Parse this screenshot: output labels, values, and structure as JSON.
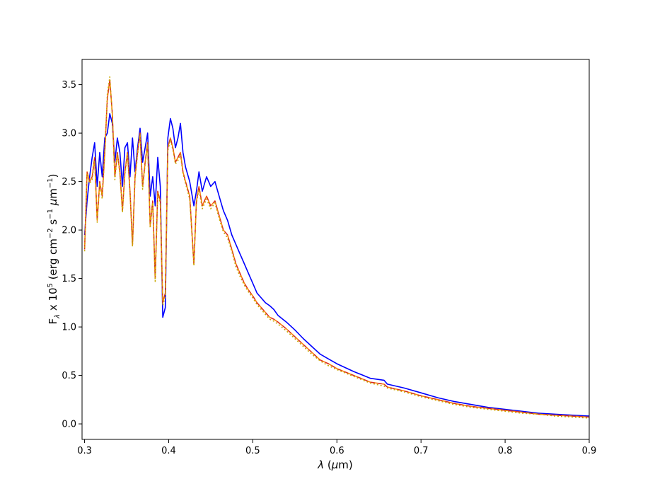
{
  "chart_data": {
    "type": "line",
    "title": "",
    "xlabel": "λ (μm)",
    "ylabel": "F_λ x 10^5 (erg cm^-2 s^-1 μm^-1)",
    "ylabel_parts": {
      "f": "F",
      "f_sub": "λ",
      "times": " x 10",
      "pow": "5",
      "units_a": " (erg cm",
      "exp1": "−2",
      "units_b": " s",
      "exp2": "−1",
      "units_c": " ",
      "mu": "μ",
      "units_d": "m",
      "exp3": "−1",
      "close": ")"
    },
    "xlabel_parts": {
      "lam": "λ",
      "rest": " (",
      "mu": "μ",
      "unit": "m)"
    },
    "xlim": [
      0.297,
      0.9
    ],
    "ylim": [
      -0.16,
      3.76
    ],
    "xticks": [
      {
        "v": 0.3,
        "label": "0.3"
      },
      {
        "v": 0.4,
        "label": "0.4"
      },
      {
        "v": 0.5,
        "label": "0.5"
      },
      {
        "v": 0.6,
        "label": "0.6"
      },
      {
        "v": 0.7,
        "label": "0.7"
      },
      {
        "v": 0.8,
        "label": "0.8"
      },
      {
        "v": 0.9,
        "label": "0.9"
      }
    ],
    "yticks": [
      {
        "v": 0.0,
        "label": "0.0"
      },
      {
        "v": 0.5,
        "label": "0.5"
      },
      {
        "v": 1.0,
        "label": "1.0"
      },
      {
        "v": 1.5,
        "label": "1.5"
      },
      {
        "v": 2.0,
        "label": "2.0"
      },
      {
        "v": 2.5,
        "label": "2.5"
      },
      {
        "v": 3.0,
        "label": "3.0"
      },
      {
        "v": 3.5,
        "label": "3.5"
      }
    ],
    "grid": false,
    "legend": "none",
    "series": [
      {
        "color": "#0000ff",
        "style": "solid",
        "x": [
          0.3,
          0.303,
          0.306,
          0.309,
          0.312,
          0.315,
          0.318,
          0.321,
          0.324,
          0.327,
          0.33,
          0.333,
          0.336,
          0.339,
          0.342,
          0.345,
          0.348,
          0.351,
          0.354,
          0.357,
          0.36,
          0.363,
          0.366,
          0.369,
          0.372,
          0.375,
          0.378,
          0.381,
          0.384,
          0.387,
          0.39,
          0.393,
          0.396,
          0.399,
          0.402,
          0.405,
          0.408,
          0.411,
          0.414,
          0.417,
          0.42,
          0.425,
          0.43,
          0.433,
          0.436,
          0.44,
          0.445,
          0.45,
          0.455,
          0.46,
          0.465,
          0.47,
          0.475,
          0.48,
          0.485,
          0.49,
          0.495,
          0.5,
          0.505,
          0.51,
          0.515,
          0.52,
          0.525,
          0.53,
          0.54,
          0.55,
          0.56,
          0.57,
          0.58,
          0.59,
          0.6,
          0.62,
          0.64,
          0.656,
          0.66,
          0.68,
          0.7,
          0.72,
          0.74,
          0.76,
          0.78,
          0.8,
          0.82,
          0.84,
          0.86,
          0.88,
          0.9
        ],
        "y": [
          1.95,
          2.3,
          2.55,
          2.75,
          2.9,
          2.45,
          2.8,
          2.55,
          2.95,
          3.0,
          3.2,
          3.1,
          2.7,
          2.95,
          2.8,
          2.45,
          2.85,
          2.9,
          2.55,
          2.95,
          2.6,
          2.85,
          3.05,
          2.7,
          2.85,
          3.0,
          2.35,
          2.55,
          2.25,
          2.75,
          2.45,
          1.1,
          1.2,
          2.95,
          3.15,
          3.05,
          2.85,
          2.95,
          3.1,
          2.8,
          2.65,
          2.5,
          2.25,
          2.4,
          2.6,
          2.4,
          2.55,
          2.45,
          2.5,
          2.35,
          2.2,
          2.1,
          1.95,
          1.85,
          1.75,
          1.65,
          1.55,
          1.45,
          1.35,
          1.3,
          1.25,
          1.22,
          1.18,
          1.12,
          1.05,
          0.97,
          0.88,
          0.8,
          0.72,
          0.67,
          0.62,
          0.54,
          0.47,
          0.45,
          0.41,
          0.37,
          0.32,
          0.27,
          0.23,
          0.2,
          0.17,
          0.15,
          0.13,
          0.11,
          0.1,
          0.09,
          0.08
        ]
      },
      {
        "color": "#ff7f0e",
        "style": "solid",
        "x": [
          0.3,
          0.303,
          0.306,
          0.309,
          0.312,
          0.315,
          0.318,
          0.321,
          0.324,
          0.327,
          0.33,
          0.333,
          0.336,
          0.339,
          0.342,
          0.345,
          0.348,
          0.351,
          0.354,
          0.357,
          0.36,
          0.363,
          0.366,
          0.369,
          0.372,
          0.375,
          0.378,
          0.381,
          0.384,
          0.387,
          0.39,
          0.393,
          0.396,
          0.399,
          0.402,
          0.405,
          0.408,
          0.411,
          0.414,
          0.417,
          0.42,
          0.425,
          0.43,
          0.433,
          0.436,
          0.44,
          0.445,
          0.45,
          0.455,
          0.46,
          0.465,
          0.47,
          0.475,
          0.48,
          0.485,
          0.49,
          0.495,
          0.5,
          0.505,
          0.51,
          0.515,
          0.52,
          0.525,
          0.53,
          0.54,
          0.55,
          0.56,
          0.57,
          0.58,
          0.59,
          0.6,
          0.62,
          0.64,
          0.656,
          0.66,
          0.68,
          0.7,
          0.72,
          0.74,
          0.76,
          0.78,
          0.8,
          0.82,
          0.84,
          0.86,
          0.88,
          0.9
        ],
        "y": [
          1.8,
          2.6,
          2.5,
          2.55,
          2.75,
          2.1,
          2.5,
          2.35,
          2.8,
          3.35,
          3.55,
          3.2,
          2.55,
          2.8,
          2.6,
          2.2,
          2.6,
          2.8,
          2.4,
          1.85,
          2.55,
          2.8,
          3.0,
          2.45,
          2.7,
          2.9,
          2.05,
          2.3,
          1.5,
          2.4,
          2.3,
          1.25,
          1.35,
          2.85,
          2.95,
          2.85,
          2.7,
          2.75,
          2.8,
          2.6,
          2.5,
          2.35,
          1.65,
          2.3,
          2.45,
          2.25,
          2.35,
          2.25,
          2.3,
          2.15,
          2.0,
          1.95,
          1.8,
          1.65,
          1.55,
          1.45,
          1.38,
          1.32,
          1.25,
          1.2,
          1.15,
          1.1,
          1.08,
          1.05,
          0.98,
          0.9,
          0.82,
          0.74,
          0.66,
          0.62,
          0.57,
          0.5,
          0.43,
          0.41,
          0.38,
          0.34,
          0.29,
          0.25,
          0.21,
          0.18,
          0.16,
          0.14,
          0.12,
          0.1,
          0.09,
          0.08,
          0.07
        ]
      },
      {
        "color": "#d62728",
        "style": "dashed",
        "x": [
          0.3,
          0.303,
          0.306,
          0.309,
          0.312,
          0.315,
          0.318,
          0.321,
          0.324,
          0.327,
          0.33,
          0.333,
          0.336,
          0.339,
          0.342,
          0.345,
          0.348,
          0.351,
          0.354,
          0.357,
          0.36,
          0.363,
          0.366,
          0.369,
          0.372,
          0.375,
          0.378,
          0.381,
          0.384,
          0.387,
          0.39,
          0.393,
          0.396,
          0.399,
          0.402,
          0.405,
          0.408,
          0.411,
          0.414,
          0.417,
          0.42,
          0.425,
          0.43,
          0.433,
          0.436,
          0.44,
          0.445,
          0.45,
          0.455,
          0.46,
          0.465,
          0.47,
          0.475,
          0.48,
          0.485,
          0.49,
          0.495,
          0.5,
          0.505,
          0.51,
          0.515,
          0.52,
          0.525,
          0.53,
          0.54,
          0.55,
          0.56,
          0.57,
          0.58,
          0.59,
          0.6,
          0.62,
          0.64,
          0.656,
          0.66,
          0.68,
          0.7,
          0.72,
          0.74,
          0.76,
          0.78,
          0.8,
          0.82,
          0.84,
          0.86,
          0.88,
          0.9
        ],
        "y": [
          1.8,
          2.6,
          2.5,
          2.55,
          2.75,
          2.1,
          2.5,
          2.35,
          2.8,
          3.35,
          3.55,
          3.2,
          2.55,
          2.8,
          2.6,
          2.2,
          2.6,
          2.8,
          2.4,
          1.85,
          2.55,
          2.8,
          3.0,
          2.45,
          2.7,
          2.9,
          2.05,
          2.3,
          1.5,
          2.4,
          2.3,
          1.25,
          1.35,
          2.85,
          2.95,
          2.85,
          2.7,
          2.75,
          2.8,
          2.6,
          2.5,
          2.35,
          1.65,
          2.3,
          2.45,
          2.25,
          2.35,
          2.25,
          2.3,
          2.15,
          2.0,
          1.95,
          1.8,
          1.65,
          1.55,
          1.45,
          1.38,
          1.32,
          1.25,
          1.2,
          1.15,
          1.1,
          1.08,
          1.05,
          0.98,
          0.9,
          0.82,
          0.74,
          0.66,
          0.62,
          0.57,
          0.5,
          0.43,
          0.41,
          0.38,
          0.34,
          0.29,
          0.25,
          0.21,
          0.18,
          0.16,
          0.14,
          0.12,
          0.1,
          0.09,
          0.08,
          0.07
        ]
      },
      {
        "color": "#c8a800",
        "style": "dotted",
        "x": [
          0.3,
          0.303,
          0.306,
          0.309,
          0.312,
          0.315,
          0.318,
          0.321,
          0.324,
          0.327,
          0.33,
          0.333,
          0.336,
          0.339,
          0.342,
          0.345,
          0.348,
          0.351,
          0.354,
          0.357,
          0.36,
          0.363,
          0.366,
          0.369,
          0.372,
          0.375,
          0.378,
          0.381,
          0.384,
          0.387,
          0.39,
          0.393,
          0.396,
          0.399,
          0.402,
          0.405,
          0.408,
          0.411,
          0.414,
          0.417,
          0.42,
          0.425,
          0.43,
          0.433,
          0.436,
          0.44,
          0.445,
          0.45,
          0.455,
          0.46,
          0.465,
          0.47,
          0.475,
          0.48,
          0.485,
          0.49,
          0.495,
          0.5,
          0.505,
          0.51,
          0.515,
          0.52,
          0.525,
          0.53,
          0.54,
          0.55,
          0.56,
          0.57,
          0.58,
          0.59,
          0.6,
          0.62,
          0.64,
          0.656,
          0.66,
          0.68,
          0.7,
          0.72,
          0.74,
          0.76,
          0.78,
          0.8,
          0.82,
          0.84,
          0.86,
          0.88,
          0.9
        ],
        "y": [
          1.78,
          2.58,
          2.48,
          2.52,
          2.72,
          2.08,
          2.48,
          2.32,
          2.78,
          3.4,
          3.58,
          3.18,
          2.52,
          2.78,
          2.58,
          2.18,
          2.58,
          2.78,
          2.38,
          1.83,
          2.52,
          2.78,
          2.98,
          2.42,
          2.68,
          2.88,
          2.02,
          2.28,
          1.47,
          2.38,
          2.28,
          1.22,
          1.32,
          2.82,
          2.93,
          2.83,
          2.68,
          2.72,
          2.78,
          2.58,
          2.48,
          2.32,
          1.63,
          2.28,
          2.42,
          2.22,
          2.32,
          2.22,
          2.28,
          2.12,
          1.98,
          1.92,
          1.78,
          1.62,
          1.52,
          1.43,
          1.36,
          1.3,
          1.23,
          1.18,
          1.13,
          1.08,
          1.06,
          1.03,
          0.96,
          0.88,
          0.8,
          0.72,
          0.65,
          0.6,
          0.56,
          0.49,
          0.42,
          0.39,
          0.37,
          0.33,
          0.28,
          0.24,
          0.2,
          0.17,
          0.15,
          0.13,
          0.11,
          0.1,
          0.08,
          0.07,
          0.06
        ]
      }
    ]
  }
}
